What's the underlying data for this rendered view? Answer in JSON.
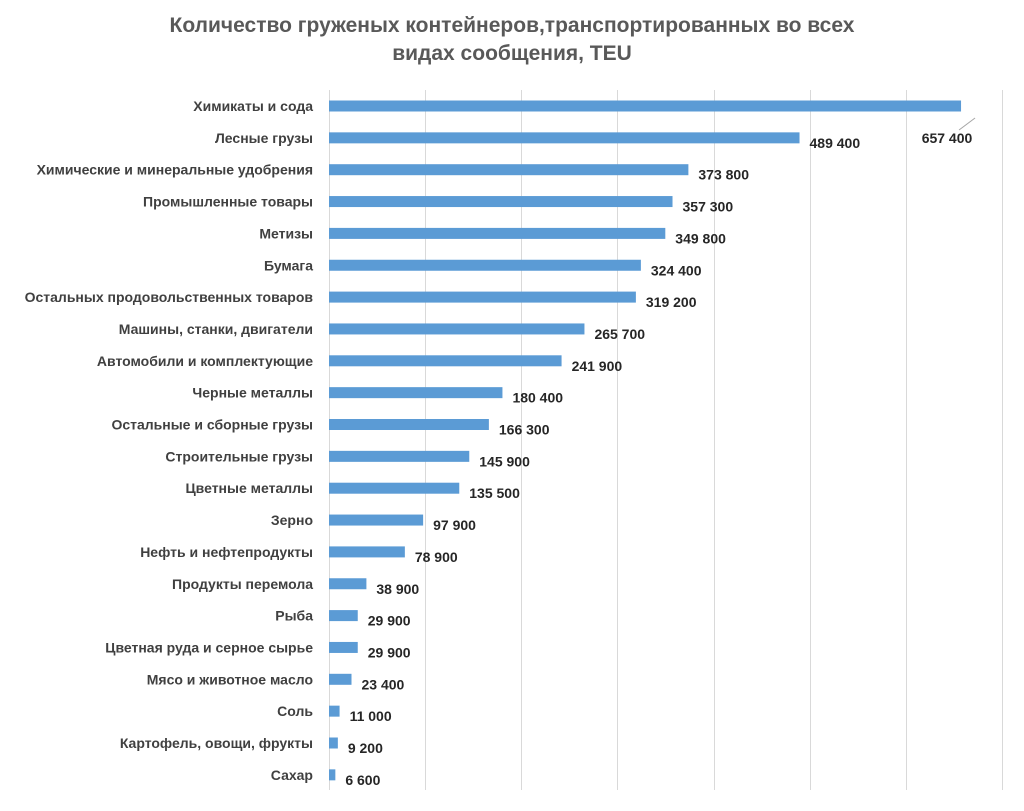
{
  "chart_data": {
    "type": "bar",
    "orientation": "horizontal",
    "title_line1": "Количество груженых контейнеров,транспортированных во всех",
    "title_line2": "видах сообщения, TEU",
    "xlabel": "",
    "ylabel": "",
    "xlim": [
      0,
      700000
    ],
    "grid": true,
    "legend": "none",
    "series_color": "#5b9bd5",
    "categories": [
      "Химикаты и сода",
      "Лесные грузы",
      "Химические и минеральные удобрения",
      "Промышленные товары",
      "Метизы",
      "Бумага",
      "Остальных продовольственных товаров",
      "Машины, станки, двигатели",
      "Автомобили и комплектующие",
      "Черные металлы",
      "Остальные и сборные грузы",
      "Строительные грузы",
      "Цветные металлы",
      "Зерно",
      "Нефть и нефтепродукты",
      "Продукты перемола",
      "Рыба",
      "Цветная руда и серное сырье",
      "Мясо и животное масло",
      "Соль",
      "Картофель, овощи, фрукты",
      "Сахар"
    ],
    "values": [
      657400,
      489400,
      373800,
      357300,
      349800,
      324400,
      319200,
      265700,
      241900,
      180400,
      166300,
      145900,
      135500,
      97900,
      78900,
      38900,
      29900,
      29900,
      23400,
      11000,
      9200,
      6600
    ],
    "value_labels": [
      "657 400",
      "489 400",
      "373 800",
      "357 300",
      "349 800",
      "324 400",
      "319 200",
      "265 700",
      "241 900",
      "180 400",
      "166 300",
      "145 900",
      "135 500",
      "97 900",
      "78 900",
      "38 900",
      "29 900",
      "29 900",
      "23 400",
      "11 000",
      "9 200",
      "6 600"
    ]
  }
}
